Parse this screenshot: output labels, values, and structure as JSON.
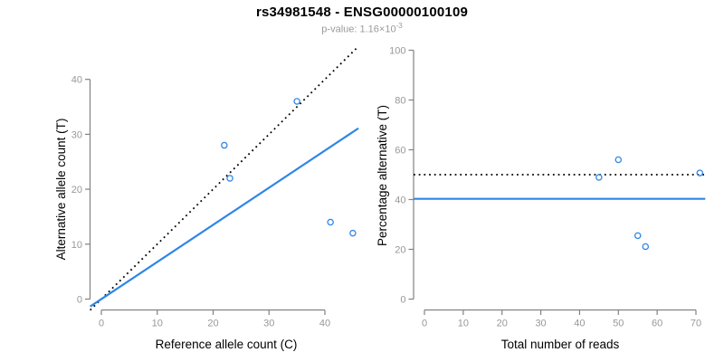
{
  "figure": {
    "title": "rs34981548 - ENSG00000100109",
    "subtitle_prefix": "p-value: 1.16×10",
    "subtitle_exponent": "-3",
    "colors": {
      "accent_blue": "#2E86E6",
      "dotted_black": "#000000",
      "axis_gray": "#828282",
      "tick_label_gray": "#989898",
      "label_black": "#000000",
      "subtitle_gray": "#9a9a9a",
      "background": "#ffffff"
    }
  },
  "chart_data": [
    {
      "type": "scatter",
      "panel": "left",
      "title": "rs34981548 - ENSG00000100109",
      "subtitle": "p-value: 1.16×10^-3",
      "xlabel": "Reference allele count (C)",
      "ylabel": "Alternative allele count (T)",
      "xticks": [
        0,
        10,
        20,
        30,
        40
      ],
      "yticks": [
        0,
        10,
        20,
        30,
        40
      ],
      "xlim": [
        0,
        45
      ],
      "ylim": [
        0,
        45
      ],
      "grid": false,
      "legend": null,
      "marker": "open-circle",
      "points": [
        {
          "x": 22,
          "y": 28
        },
        {
          "x": 23,
          "y": 22
        },
        {
          "x": 35,
          "y": 36
        },
        {
          "x": 41,
          "y": 14
        },
        {
          "x": 45,
          "y": 12
        }
      ],
      "lines": [
        {
          "name": "identity-line",
          "kind": "abline",
          "slope": 1,
          "intercept": 0,
          "style": "dotted",
          "color": "#000000"
        },
        {
          "name": "regression-line",
          "kind": "abline",
          "slope": 0.676,
          "intercept": 0,
          "style": "solid",
          "color": "#2E86E6"
        }
      ]
    },
    {
      "type": "scatter",
      "panel": "right",
      "xlabel": "Total number of reads",
      "ylabel": "Percentage alternative (T)",
      "xticks": [
        0,
        10,
        20,
        30,
        40,
        50,
        60,
        70
      ],
      "yticks": [
        0,
        20,
        40,
        60,
        80,
        100
      ],
      "xlim": [
        0,
        71
      ],
      "ylim": [
        0,
        100
      ],
      "grid": false,
      "legend": null,
      "marker": "open-circle",
      "points": [
        {
          "x": 45,
          "y": 48.9
        },
        {
          "x": 50,
          "y": 56
        },
        {
          "x": 55,
          "y": 25.5
        },
        {
          "x": 57,
          "y": 21.1
        },
        {
          "x": 71,
          "y": 50.7
        }
      ],
      "lines": [
        {
          "name": "fifty-percent-line",
          "kind": "hline",
          "y": 50,
          "style": "dotted",
          "color": "#000000"
        },
        {
          "name": "regression-percentage-line",
          "kind": "hline",
          "y": 40.3,
          "style": "solid",
          "color": "#2E86E6"
        }
      ]
    }
  ]
}
